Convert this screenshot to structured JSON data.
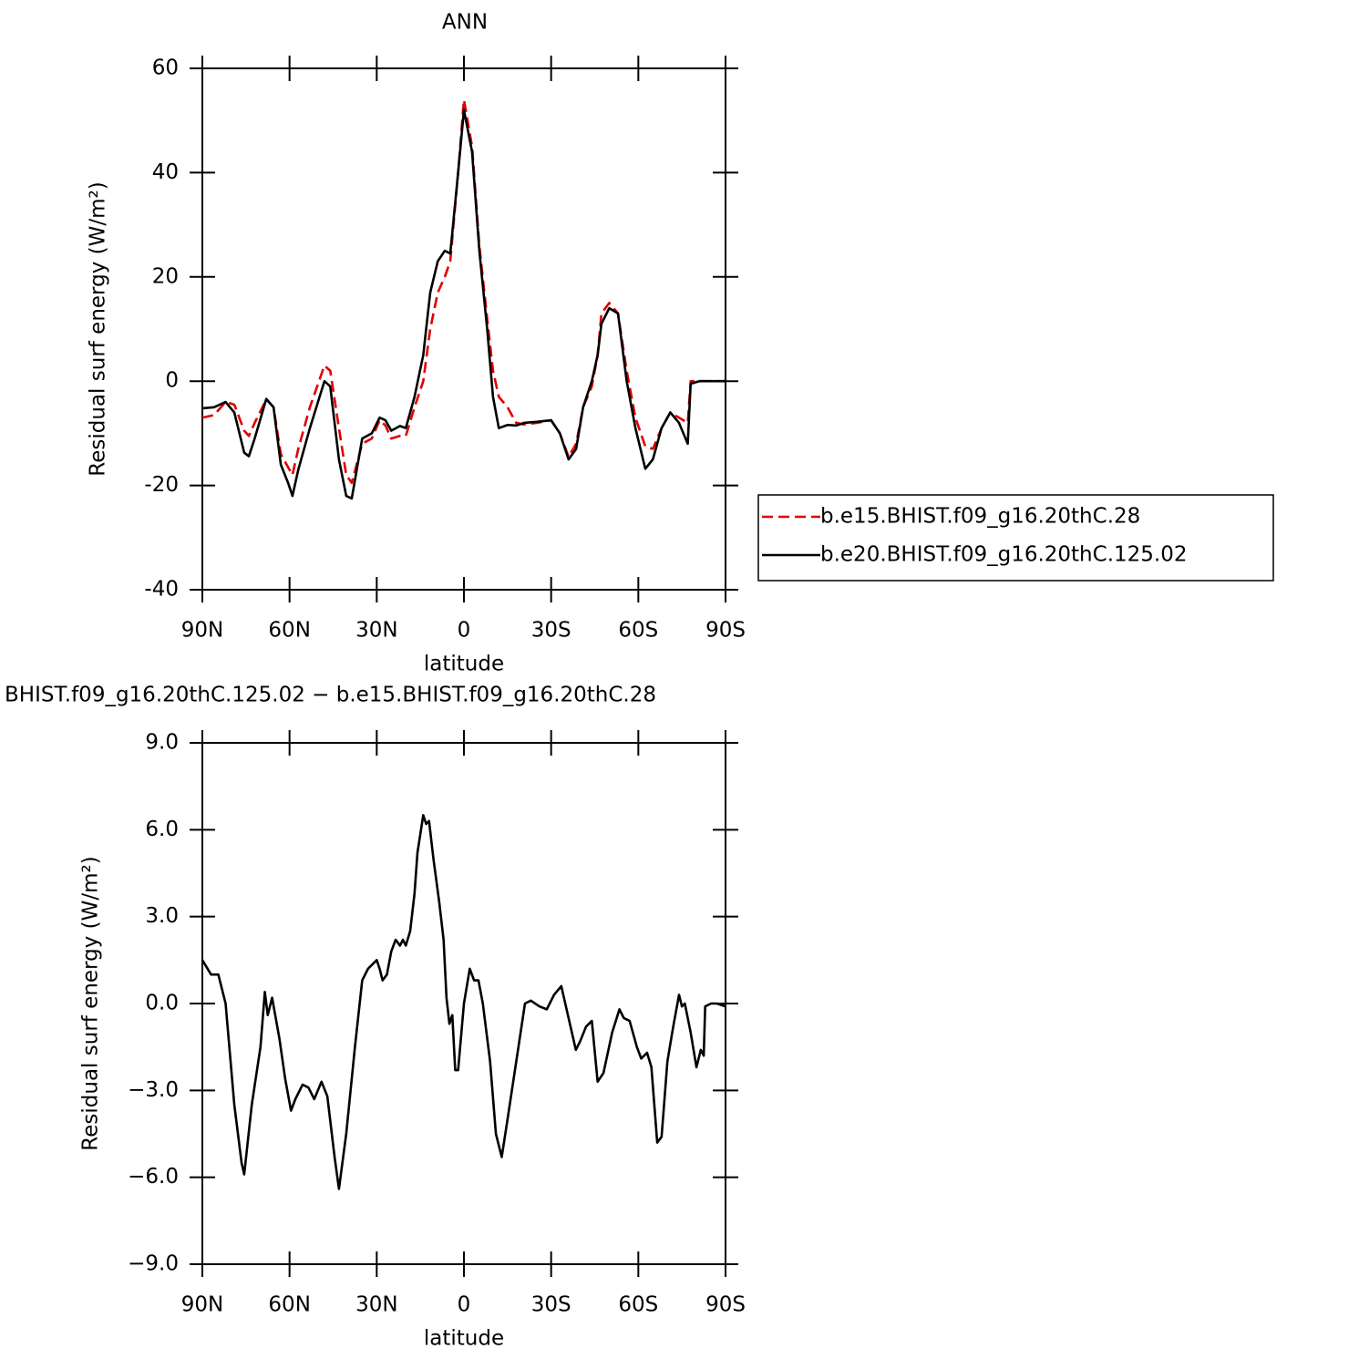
{
  "chart_data": [
    {
      "type": "line",
      "title": "ANN",
      "xlabel": "latitude",
      "ylabel": "Residual surf energy (W/m²)",
      "x": [
        90,
        86,
        82,
        79,
        75.6,
        74,
        72,
        68,
        65.5,
        63,
        60.5,
        59,
        57,
        53,
        48,
        46,
        43,
        40.5,
        38.6,
        35,
        31.7,
        29,
        27,
        25,
        22,
        20,
        17,
        14,
        11.6,
        9,
        6.6,
        4.7,
        2,
        0,
        -2.8,
        -5.3,
        -8,
        -10,
        -12,
        -15,
        -18,
        -20.7,
        -25,
        -30,
        -33,
        -36,
        -38.6,
        -41,
        -44,
        -46,
        -47.3,
        -50,
        -53,
        -56,
        -59,
        -62.4,
        -65,
        -68,
        -71,
        -74,
        -77,
        -78,
        -81,
        -85,
        -90
      ],
      "series": [
        {
          "name": "b.e15.BHIST.f09_g16.20thC.28",
          "color": "#e00000",
          "dash": "dashed",
          "values": [
            -7,
            -6.5,
            -4,
            -4.5,
            -9.5,
            -10.5,
            -8,
            -3.5,
            -5,
            -14,
            -16.5,
            -18,
            -13,
            -5,
            3,
            2,
            -9,
            -18,
            -19.5,
            -12,
            -11,
            -7.5,
            -8.5,
            -11,
            -10.5,
            -10.5,
            -5,
            0,
            10,
            17,
            20,
            23,
            40,
            54,
            45,
            26,
            12,
            2,
            -3,
            -5,
            -8,
            -8.3,
            -8,
            -7.5,
            -10,
            -14.5,
            -12,
            -5,
            -1,
            5,
            13,
            15,
            13,
            2,
            -7,
            -12.5,
            -13,
            -9,
            -6,
            -7,
            -8,
            0,
            0,
            0,
            0
          ]
        },
        {
          "name": "b.e20.BHIST.f09_g16.20thC.125.02",
          "color": "#000000",
          "dash": "solid",
          "values": [
            -5.2,
            -5,
            -4,
            -6,
            -13.7,
            -14.4,
            -11,
            -3.4,
            -5,
            -16,
            -19.5,
            -22,
            -17,
            -9,
            0,
            -1,
            -15,
            -22,
            -22.5,
            -11,
            -10,
            -7,
            -7.5,
            -9.5,
            -8.6,
            -9,
            -3,
            5,
            17,
            23,
            25,
            24.5,
            40,
            52,
            44,
            25,
            10,
            -3,
            -9,
            -8.4,
            -8.5,
            -8,
            -7.8,
            -7.5,
            -10,
            -15,
            -13,
            -5,
            0,
            5,
            11,
            14,
            13,
            0,
            -9,
            -16.8,
            -15,
            -9,
            -6,
            -8,
            -12,
            -0.5,
            0,
            0,
            0
          ]
        }
      ],
      "xlim": [
        90,
        -90
      ],
      "xticks": [
        {
          "value": 90,
          "label": "90N"
        },
        {
          "value": 60,
          "label": "60N"
        },
        {
          "value": 30,
          "label": "30N"
        },
        0,
        {
          "value": -30,
          "label": "30S"
        },
        {
          "value": -60,
          "label": "60S"
        },
        {
          "value": -90,
          "label": "90S"
        }
      ],
      "ylim": [
        -40,
        60
      ],
      "yticks": [
        -40,
        -20,
        0,
        20,
        40,
        60
      ],
      "legend": "right"
    },
    {
      "type": "line",
      "title": "BHIST.f09_g16.20thC.125.02 − b.e15.BHIST.f09_g16.20thC.28",
      "xlabel": "latitude",
      "ylabel": "Residual surf energy (W/m²)",
      "x": [
        90,
        87,
        84.5,
        82,
        79,
        76.5,
        75.6,
        73,
        70,
        68.5,
        67.5,
        66,
        63.5,
        61.5,
        59.5,
        58,
        55.5,
        53.5,
        51.5,
        49,
        47,
        44.5,
        43,
        40.5,
        37.5,
        35,
        33,
        30,
        29,
        28,
        26.5,
        25,
        23.5,
        22,
        21,
        20,
        18.5,
        17,
        16,
        14,
        13,
        12,
        10.5,
        8.5,
        7,
        6,
        5,
        4,
        3,
        2,
        0,
        -2,
        -3.5,
        -5,
        -6.5,
        -9,
        -11,
        -13,
        -15,
        -18,
        -21,
        -23,
        -26,
        -28.5,
        -31,
        -33.5,
        -36,
        -38.5,
        -40,
        -42,
        -44,
        -46,
        -48,
        -51,
        -53.5,
        -55,
        -57,
        -59.5,
        -61,
        -63,
        -64.5,
        -66.5,
        -68,
        -70,
        -72,
        -74,
        -75,
        -76,
        -78,
        -80,
        -81.5,
        -82.5,
        -83,
        -85,
        -87,
        -90
      ],
      "series": [
        {
          "color": "#000000",
          "dash": "solid",
          "values": [
            1.5,
            1,
            1,
            0,
            -3.5,
            -5.5,
            -5.9,
            -3.5,
            -1.5,
            0.4,
            -0.4,
            0.2,
            -1.2,
            -2.6,
            -3.7,
            -3.3,
            -2.8,
            -2.9,
            -3.3,
            -2.7,
            -3.2,
            -5.3,
            -6.4,
            -4.5,
            -1.5,
            0.8,
            1.2,
            1.5,
            1.2,
            0.8,
            1,
            1.8,
            2.2,
            2,
            2.2,
            2,
            2.5,
            3.8,
            5.2,
            6.5,
            6.2,
            6.3,
            5,
            3.5,
            2.2,
            0.2,
            -0.7,
            -0.4,
            -2.3,
            -2.3,
            0,
            1.2,
            0.8,
            0.8,
            0,
            -2,
            -4.5,
            -5.3,
            -4,
            -2,
            0,
            0.1,
            -0.1,
            -0.2,
            0.3,
            0.6,
            -0.5,
            -1.6,
            -1.3,
            -0.8,
            -0.6,
            -2.7,
            -2.4,
            -1,
            -0.2,
            -0.5,
            -0.6,
            -1.5,
            -1.9,
            -1.7,
            -2.2,
            -4.8,
            -4.6,
            -2,
            -0.8,
            0.3,
            -0.1,
            0,
            -1,
            -2.2,
            -1.6,
            -1.8,
            -0.1,
            0,
            0,
            -0.1
          ]
        }
      ],
      "xlim": [
        90,
        -90
      ],
      "xticks": [
        {
          "value": 90,
          "label": "90N"
        },
        {
          "value": 60,
          "label": "60N"
        },
        {
          "value": 30,
          "label": "30N"
        },
        0,
        {
          "value": -30,
          "label": "30S"
        },
        {
          "value": -60,
          "label": "60S"
        },
        {
          "value": -90,
          "label": "90S"
        }
      ],
      "ylim": [
        -9,
        9
      ],
      "yticks": [
        {
          "value": -9,
          "label": "−9.0"
        },
        {
          "value": -6,
          "label": "−6.0"
        },
        {
          "value": -3,
          "label": "−3.0"
        },
        {
          "value": 0,
          "label": "0.0"
        },
        {
          "value": 3,
          "label": "3.0"
        },
        {
          "value": 6,
          "label": "6.0"
        },
        {
          "value": 9,
          "label": "9.0"
        }
      ]
    }
  ]
}
